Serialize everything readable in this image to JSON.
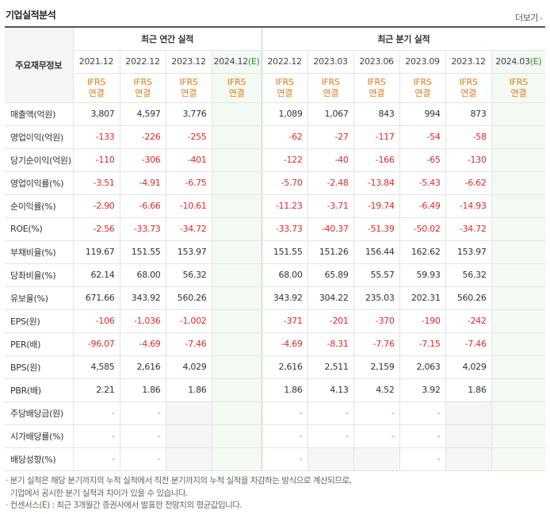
{
  "header": {
    "title": "기업실적분석",
    "more_label": "더보기"
  },
  "table": {
    "row_header_label": "주요재무정보",
    "annual_group_label": "최근 연간 실적",
    "quarter_group_label": "최근 분기 실적",
    "periods": [
      {
        "label": "2021.12",
        "est": false
      },
      {
        "label": "2022.12",
        "est": false
      },
      {
        "label": "2023.12",
        "est": false
      },
      {
        "label": "2024.12",
        "est": true
      },
      {
        "label": "2022.12",
        "est": false
      },
      {
        "label": "2023.03",
        "est": false
      },
      {
        "label": "2023.06",
        "est": false
      },
      {
        "label": "2023.09",
        "est": false
      },
      {
        "label": "2023.12",
        "est": false
      },
      {
        "label": "2024.03",
        "est": true
      }
    ],
    "est_marker": "(E)",
    "ifrs_line1": "IFRS",
    "ifrs_line2": "연결",
    "rows": [
      {
        "label": "매출액(억원)",
        "values": [
          "3,807",
          "4,597",
          "3,776",
          "",
          "1,089",
          "1,067",
          "843",
          "994",
          "873",
          ""
        ]
      },
      {
        "label": "영업이익(억원)",
        "values": [
          "-133",
          "-226",
          "-255",
          "",
          "-62",
          "-27",
          "-117",
          "-54",
          "-58",
          ""
        ]
      },
      {
        "label": "당기순이익(억원)",
        "values": [
          "-110",
          "-306",
          "-401",
          "",
          "-122",
          "-40",
          "-166",
          "-65",
          "-130",
          ""
        ]
      },
      {
        "label": "영업이익률(%)",
        "values": [
          "-3.51",
          "-4.91",
          "-6.75",
          "",
          "-5.70",
          "-2.48",
          "-13.84",
          "-5.43",
          "-6.62",
          ""
        ]
      },
      {
        "label": "순이익률(%)",
        "values": [
          "-2.90",
          "-6.66",
          "-10.61",
          "",
          "-11.23",
          "-3.71",
          "-19.74",
          "-6.49",
          "-14.93",
          ""
        ]
      },
      {
        "label": "ROE(%)",
        "values": [
          "-2.56",
          "-33.73",
          "-34.72",
          "",
          "-33.73",
          "-40.37",
          "-51.39",
          "-50.02",
          "-34.72",
          ""
        ]
      },
      {
        "label": "부채비율(%)",
        "values": [
          "119.67",
          "151.55",
          "153.97",
          "",
          "151.55",
          "151.26",
          "156.44",
          "162.62",
          "153.97",
          ""
        ]
      },
      {
        "label": "당좌비율(%)",
        "values": [
          "62.14",
          "68.00",
          "56.32",
          "",
          "68.00",
          "65.89",
          "55.57",
          "59.93",
          "56.32",
          ""
        ]
      },
      {
        "label": "유보율(%)",
        "values": [
          "671.66",
          "343.92",
          "560.26",
          "",
          "343.92",
          "304.22",
          "235.03",
          "202.31",
          "560.26",
          ""
        ]
      },
      {
        "label": "EPS(원)",
        "values": [
          "-106",
          "-1,036",
          "-1,002",
          "",
          "-371",
          "-201",
          "-370",
          "-190",
          "-242",
          ""
        ]
      },
      {
        "label": "PER(배)",
        "values": [
          "-96.07",
          "-4.69",
          "-7.46",
          "",
          "-4.69",
          "-8.31",
          "-7.76",
          "-7.15",
          "-7.46",
          ""
        ]
      },
      {
        "label": "BPS(원)",
        "values": [
          "4,585",
          "2,616",
          "4,029",
          "",
          "2,616",
          "2,511",
          "2,159",
          "2,063",
          "4,029",
          ""
        ]
      },
      {
        "label": "PBR(배)",
        "values": [
          "2.21",
          "1.86",
          "1.86",
          "",
          "1.86",
          "4.13",
          "4.52",
          "3.92",
          "1.86",
          ""
        ]
      },
      {
        "label": "주당배당금(원)",
        "values": [
          "-",
          "-",
          "",
          "",
          "-",
          "-",
          "-",
          "-",
          "",
          ""
        ]
      },
      {
        "label": "시가배당률(%)",
        "values": [
          "-",
          "-",
          "",
          "",
          "-",
          "-",
          "-",
          "-",
          "",
          ""
        ]
      },
      {
        "label": "배당성향(%)",
        "values": [
          "-",
          "-",
          "",
          "",
          "-",
          "",
          "",
          "-",
          "",
          ""
        ]
      }
    ]
  },
  "notes": {
    "line1": "· 분기 실적은 해당 분기까지의 누적 실적에서 직전 분기까지의 누적 실적을 차감하는 방식으로 계산되므로,",
    "line2": "  기업에서 공시한 분기 실적과 차이가 있을 수 있습니다.",
    "line3_pre": "· 컨센서스(",
    "line3_e": "E",
    "line3_post": ") : 최근 3개월간 증권사에서 발표한 전망치의 평균값입니다."
  }
}
